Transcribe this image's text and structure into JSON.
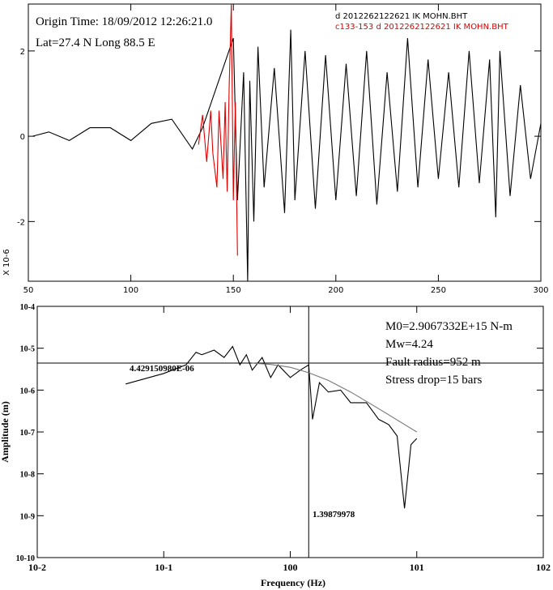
{
  "top_panel": {
    "origin_time": "Origin Time: 18/09/2012 12:26:21.0",
    "lat_long": "Lat=27.4 N Long 88.5 E",
    "legend": [
      {
        "label": "d  2012262122621  IK  MOHN.BHT",
        "color": "#000000"
      },
      {
        "label": "c133-153  d  2012262122621  IK  MOHN.BHT",
        "color": "#dd0000"
      }
    ],
    "y_exponent_label": "X 10-6"
  },
  "bottom_panel": {
    "annotations": {
      "m0": "M0=2.9067332E+15 N-m",
      "mw": "Mw=4.24",
      "fault_radius": "Fault radius=952 m",
      "stress_drop": "Stress drop=15 bars"
    },
    "plateau_value_label": "4.429150980E-06",
    "corner_freq_label": "1.39879978"
  },
  "chart_data": [
    {
      "type": "line",
      "title": "",
      "xlabel": "",
      "ylabel": "",
      "xlim": [
        50,
        300
      ],
      "ylim": [
        -3.4,
        3.1
      ],
      "x_ticks": [
        "50",
        "100",
        "150",
        "200",
        "250",
        "300"
      ],
      "y_ticks": [
        "-2",
        "0",
        "2"
      ],
      "series": [
        {
          "name": "d  2012262122621  IK  MOHN.BHT",
          "color": "#000000",
          "x": [
            52,
            60,
            70,
            80,
            90,
            100,
            110,
            120,
            130,
            135,
            150,
            152,
            155,
            157,
            158,
            160,
            162,
            165,
            170,
            175,
            178,
            180,
            185,
            190,
            195,
            200,
            205,
            210,
            215,
            220,
            225,
            230,
            235,
            240,
            245,
            250,
            255,
            260,
            265,
            270,
            275,
            278,
            280,
            285,
            290,
            295,
            300
          ],
          "y": [
            0,
            0.1,
            -0.1,
            0.2,
            0.2,
            -0.1,
            0.3,
            0.4,
            -0.3,
            0.2,
            2.3,
            -1.5,
            1.5,
            -3.4,
            1.3,
            -2,
            2.1,
            -1.2,
            1.6,
            -1.8,
            2.5,
            -1.5,
            2.0,
            -1.7,
            1.9,
            -1.5,
            1.7,
            -1.4,
            2.0,
            -1.6,
            1.5,
            -1.3,
            2.3,
            -1.2,
            1.8,
            -1.0,
            1.5,
            -1.2,
            2.0,
            -1.1,
            1.8,
            -1.9,
            2.0,
            -1.4,
            1.2,
            -1.0,
            0.3
          ]
        },
        {
          "name": "c133-153  d  2012262122621  IK  MOHN.BHT",
          "color": "#dd0000",
          "x": [
            133,
            135,
            137,
            139,
            140,
            142,
            143,
            145,
            146,
            147,
            148,
            149,
            150,
            151,
            152
          ],
          "y": [
            -0.2,
            0.5,
            -0.6,
            0.6,
            -0.4,
            -1.2,
            0.6,
            -1.0,
            0.8,
            -1.3,
            1.2,
            3.1,
            -1.5,
            0.8,
            -2.8
          ]
        }
      ]
    },
    {
      "type": "line",
      "title": "",
      "xlabel": "Frequency (Hz)",
      "ylabel": "Amplitude (m)",
      "x_scale": "log",
      "y_scale": "log",
      "xlim": [
        0.01,
        100
      ],
      "ylim": [
        1e-10,
        0.0001
      ],
      "x_ticks": [
        "10-2",
        "10-1",
        "100",
        "101",
        "102"
      ],
      "y_ticks": [
        "10-10",
        "10-9",
        "10-8",
        "10-7",
        "10-6",
        "10-5",
        "10-4"
      ],
      "series": [
        {
          "name": "",
          "color": "#000000",
          "x": [
            0.05,
            0.1,
            0.15,
            0.18,
            0.2,
            0.25,
            0.3,
            0.35,
            0.4,
            0.45,
            0.5,
            0.6,
            0.7,
            0.8,
            1.0,
            1.2,
            1.4,
            1.5,
            1.7,
            2.0,
            2.5,
            3.0,
            4.0,
            5.0,
            6.0,
            7.0,
            8.0,
            9.0,
            10.0
          ],
          "y": [
            1.4e-06,
            2.5e-06,
            4e-06,
            8e-06,
            7e-06,
            9e-06,
            6e-06,
            1.1e-05,
            4e-06,
            7e-06,
            3e-06,
            6e-06,
            2e-06,
            4e-06,
            2e-06,
            3e-06,
            4e-06,
            2e-07,
            1.5e-06,
            9e-07,
            1e-06,
            5e-07,
            5e-07,
            2e-07,
            1.5e-07,
            8e-08,
            1.5e-09,
            5e-08,
            7e-08
          ]
        },
        {
          "name": "",
          "color": "#777777",
          "x": [
            0.5,
            0.7,
            1.0,
            1.4,
            2.0,
            3.0,
            5.0,
            10.0
          ],
          "y": [
            4.4e-06,
            4.1e-06,
            3.5e-06,
            2.6e-06,
            1.7e-06,
            9e-07,
            3.6e-07,
            1e-07
          ]
        }
      ],
      "reference_lines": {
        "plateau": 4.42915098e-06,
        "corner_frequency": 1.39879978
      }
    }
  ]
}
